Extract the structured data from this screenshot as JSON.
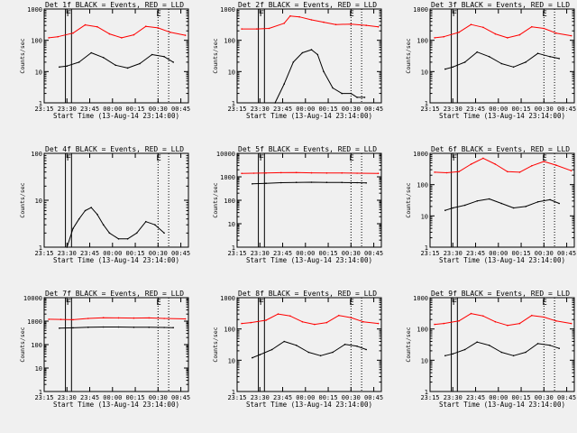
{
  "colors": {
    "background": "#f0f0f0",
    "events": "#000000",
    "lld": "#ff0000",
    "frame": "#000000"
  },
  "chart_data": {
    "type": "line",
    "layout": "3x3 grid",
    "xlabel": "Start Time (13-Aug-14 23:14:00)",
    "ylabel": "Counts/sec",
    "y_scale": "log",
    "x_ticks": [
      "23:15",
      "23:30",
      "23:45",
      "00:00",
      "00:15",
      "00:30",
      "00:45"
    ],
    "x_tick_minutes": [
      1,
      16,
      31,
      46,
      61,
      76,
      91
    ],
    "x_range_minutes": [
      1,
      96
    ],
    "markers": {
      "F": {
        "label": "F",
        "minutes": [
          15,
          19
        ]
      },
      "E": {
        "label": "E",
        "minutes": [
          76,
          83
        ]
      }
    },
    "panels": [
      {
        "title": "Det 1f BLACK = Events, RED = LLD",
        "ylim": [
          1,
          1000
        ],
        "y_ticks": [
          "1",
          "10",
          "100",
          "1000"
        ],
        "series": [
          {
            "key": "lld",
            "x": [
              4,
              10,
              20,
              28,
              36,
              44,
              52,
              60,
              68,
              76,
              84,
              94
            ],
            "values": [
              120,
              130,
              170,
              310,
              270,
              160,
              120,
              150,
              280,
              250,
              180,
              145
            ]
          },
          {
            "key": "events",
            "x": [
              11,
              16,
              24,
              32,
              40,
              48,
              56,
              64,
              72,
              80,
              86
            ],
            "values": [
              14,
              15,
              20,
              40,
              28,
              16,
              13,
              18,
              35,
              30,
              20
            ]
          }
        ]
      },
      {
        "title": "Det 2f BLACK = Events, RED = LLD",
        "ylim": [
          1,
          1000
        ],
        "y_ticks": [
          "1",
          "10",
          "100",
          "1000"
        ],
        "series": [
          {
            "key": "lld",
            "x": [
              4,
              14,
              22,
              32,
              36,
              42,
              50,
              58,
              66,
              76,
              86,
              94
            ],
            "values": [
              230,
              230,
              240,
              350,
              600,
              560,
              450,
              380,
              320,
              330,
              300,
              270
            ]
          },
          {
            "key": "events",
            "x": [
              26,
              32,
              38,
              44,
              50,
              54,
              58,
              64,
              70,
              76,
              80,
              85
            ],
            "values": [
              1,
              4,
              20,
              40,
              50,
              35,
              10,
              3,
              2,
              2,
              1.5,
              1.5
            ]
          }
        ]
      },
      {
        "title": "Det 3f BLACK = Events, RED = LLD",
        "ylim": [
          1,
          1000
        ],
        "y_ticks": [
          "1",
          "10",
          "100",
          "1000"
        ],
        "series": [
          {
            "key": "lld",
            "x": [
              4,
              10,
              20,
              28,
              36,
              44,
              52,
              60,
              68,
              76,
              84,
              94
            ],
            "values": [
              120,
              130,
              180,
              320,
              260,
              160,
              120,
              150,
              270,
              240,
              170,
              140
            ]
          },
          {
            "key": "events",
            "x": [
              11,
              16,
              24,
              32,
              40,
              48,
              56,
              64,
              72,
              80,
              86
            ],
            "values": [
              12,
              14,
              20,
              42,
              30,
              18,
              14,
              20,
              38,
              30,
              26
            ]
          }
        ]
      },
      {
        "title": "Det 4f BLACK = Events, RED = LLD",
        "ylim": [
          1,
          100
        ],
        "y_ticks": [
          "1",
          "10",
          "100"
        ],
        "series": [
          {
            "key": "events",
            "x": [
              16,
              20,
              24,
              28,
              32,
              36,
              40,
              44,
              50,
              56,
              62,
              68,
              74,
              80
            ],
            "values": [
              1,
              2.5,
              4,
              6,
              7,
              5,
              3,
              2,
              1.5,
              1.5,
              2,
              3.5,
              3,
              2
            ]
          }
        ]
      },
      {
        "title": "Det 5f BLACK = Events, RED = LLD",
        "ylim": [
          1,
          10000
        ],
        "y_ticks": [
          "1",
          "10",
          "100",
          "1000",
          "10000"
        ],
        "series": [
          {
            "key": "lld",
            "x": [
              4,
              12,
              20,
              30,
              40,
              50,
              60,
              70,
              80,
              94
            ],
            "values": [
              1400,
              1420,
              1450,
              1500,
              1520,
              1480,
              1450,
              1460,
              1430,
              1400
            ]
          },
          {
            "key": "events",
            "x": [
              11,
              20,
              30,
              40,
              50,
              60,
              70,
              80,
              86
            ],
            "values": [
              500,
              530,
              560,
              580,
              590,
              580,
              570,
              560,
              550
            ]
          }
        ]
      },
      {
        "title": "Det 6f BLACK = Events, RED = LLD",
        "ylim": [
          1,
          1000
        ],
        "y_ticks": [
          "1",
          "10",
          "100",
          "1000"
        ],
        "series": [
          {
            "key": "lld",
            "x": [
              4,
              12,
              20,
              28,
              36,
              44,
              52,
              60,
              68,
              76,
              84,
              94
            ],
            "values": [
              250,
              240,
              260,
              450,
              700,
              450,
              260,
              250,
              400,
              550,
              420,
              280
            ]
          },
          {
            "key": "events",
            "x": [
              11,
              16,
              24,
              32,
              40,
              48,
              56,
              64,
              72,
              80,
              86
            ],
            "values": [
              15,
              18,
              22,
              30,
              35,
              25,
              18,
              20,
              28,
              33,
              25
            ]
          }
        ]
      },
      {
        "title": "Det 7f BLACK = Events, RED = LLD",
        "ylim": [
          1,
          10000
        ],
        "y_ticks": [
          "1",
          "10",
          "100",
          "1000",
          "10000"
        ],
        "series": [
          {
            "key": "lld",
            "x": [
              4,
              12,
              20,
              30,
              40,
              50,
              60,
              70,
              80,
              94
            ],
            "values": [
              1200,
              1180,
              1150,
              1300,
              1400,
              1380,
              1350,
              1370,
              1300,
              1250
            ]
          },
          {
            "key": "events",
            "x": [
              11,
              20,
              30,
              40,
              50,
              60,
              70,
              80,
              86
            ],
            "values": [
              500,
              520,
              550,
              560,
              560,
              550,
              550,
              540,
              530
            ]
          }
        ]
      },
      {
        "title": "Det 8f BLACK = Events, RED = LLD",
        "ylim": [
          1,
          1000
        ],
        "y_ticks": [
          "1",
          "10",
          "100",
          "1000"
        ],
        "series": [
          {
            "key": "lld",
            "x": [
              4,
              10,
              20,
              28,
              36,
              44,
              52,
              60,
              68,
              76,
              84,
              94
            ],
            "values": [
              150,
              160,
              190,
              300,
              260,
              170,
              140,
              160,
              270,
              230,
              170,
              150
            ]
          },
          {
            "key": "events",
            "x": [
              11,
              16,
              24,
              32,
              40,
              48,
              56,
              64,
              72,
              80,
              86
            ],
            "values": [
              12,
              15,
              22,
              40,
              30,
              18,
              14,
              18,
              32,
              28,
              22
            ]
          }
        ]
      },
      {
        "title": "Det 9f BLACK = Events, RED = LLD",
        "ylim": [
          1,
          1000
        ],
        "y_ticks": [
          "1",
          "10",
          "100",
          "1000"
        ],
        "series": [
          {
            "key": "lld",
            "x": [
              4,
              10,
              20,
              28,
              36,
              44,
              52,
              60,
              68,
              76,
              84,
              94
            ],
            "values": [
              140,
              150,
              180,
              310,
              260,
              170,
              130,
              150,
              270,
              240,
              180,
              150
            ]
          },
          {
            "key": "events",
            "x": [
              11,
              16,
              24,
              32,
              40,
              48,
              56,
              64,
              72,
              80,
              86
            ],
            "values": [
              14,
              16,
              22,
              38,
              30,
              18,
              14,
              18,
              34,
              30,
              24
            ]
          }
        ]
      }
    ]
  }
}
